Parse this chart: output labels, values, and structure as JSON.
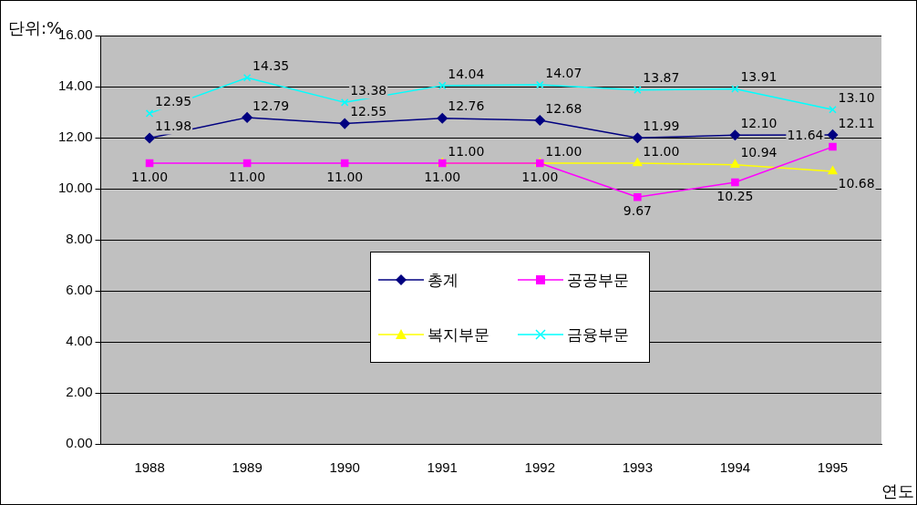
{
  "chart_data": {
    "type": "line",
    "ylabel": "단위:%",
    "xlabel": "연도",
    "categories": [
      "1988",
      "1989",
      "1990",
      "1991",
      "1992",
      "1993",
      "1994",
      "1995"
    ],
    "ylim": [
      0,
      16
    ],
    "yticks": [
      {
        "value": 0,
        "label": "0.00"
      },
      {
        "value": 2,
        "label": "2.00"
      },
      {
        "value": 4,
        "label": "4.00"
      },
      {
        "value": 6,
        "label": "6.00"
      },
      {
        "value": 8,
        "label": "8.00"
      },
      {
        "value": 10,
        "label": "10.00"
      },
      {
        "value": 12,
        "label": "12.00"
      },
      {
        "value": 14,
        "label": "14.00"
      },
      {
        "value": 16,
        "label": "16.00"
      }
    ],
    "grid": "y",
    "legend": "center",
    "series": [
      {
        "name": "총계",
        "color": "#000080",
        "marker": "diamond",
        "values": [
          11.98,
          12.79,
          12.55,
          12.76,
          12.68,
          11.99,
          12.1,
          12.11
        ],
        "value_labels": [
          "11.98",
          "12.79",
          "12.55",
          "12.76",
          "12.68",
          "11.99",
          "12.10",
          "12.11"
        ]
      },
      {
        "name": "공공부문",
        "color": "#ff00ff",
        "marker": "square",
        "values": [
          11.0,
          11.0,
          11.0,
          11.0,
          11.0,
          9.67,
          10.25,
          11.64
        ],
        "value_labels": [
          "11.00",
          "11.00",
          "11.00",
          "11.00",
          "11.00",
          "9.67",
          "10.25",
          "11.64"
        ]
      },
      {
        "name": "복지부문",
        "color": "#ffff00",
        "marker": "triangle",
        "values": [
          null,
          null,
          null,
          11.0,
          11.0,
          11.0,
          10.94,
          10.68
        ],
        "value_labels": [
          null,
          null,
          null,
          "11.00",
          "11.00",
          "11.00",
          "10.94",
          "10.68"
        ]
      },
      {
        "name": "금융부문",
        "color": "#00ffff",
        "marker": "cross",
        "values": [
          12.95,
          14.35,
          13.38,
          14.04,
          14.07,
          13.87,
          13.91,
          13.1
        ],
        "value_labels": [
          "12.95",
          "14.35",
          "13.38",
          "14.04",
          "14.07",
          "13.87",
          "13.91",
          "13.10"
        ]
      }
    ]
  }
}
